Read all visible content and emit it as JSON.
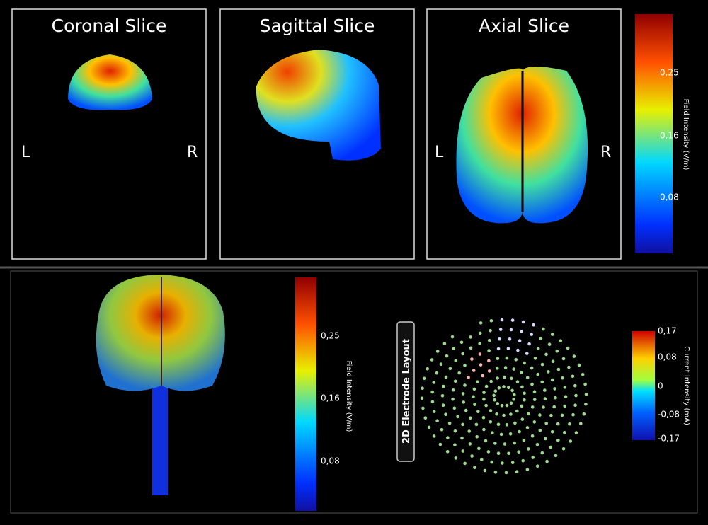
{
  "panels": [
    {
      "title": "Coronal Slice",
      "left": "L",
      "right": "R"
    },
    {
      "title": "Sagittal Slice"
    },
    {
      "title": "Axial Slice",
      "left": "L",
      "right": "R"
    }
  ],
  "slice_colorbar": {
    "label": "Field Intensity (V/m)",
    "ticks": [
      "0,25",
      "0,16",
      "0,08"
    ]
  },
  "brain_colorbar": {
    "label": "Field Intensity (V/m)",
    "ticks": [
      "0,25",
      "0,16",
      "0,08"
    ]
  },
  "electrode_button": "2D Electrode Layout",
  "current_colorbar": {
    "label": "Current Intensity (mA)",
    "ticks": [
      "0,17",
      "0,08",
      "0",
      "-0,08",
      "-0,17"
    ]
  }
}
